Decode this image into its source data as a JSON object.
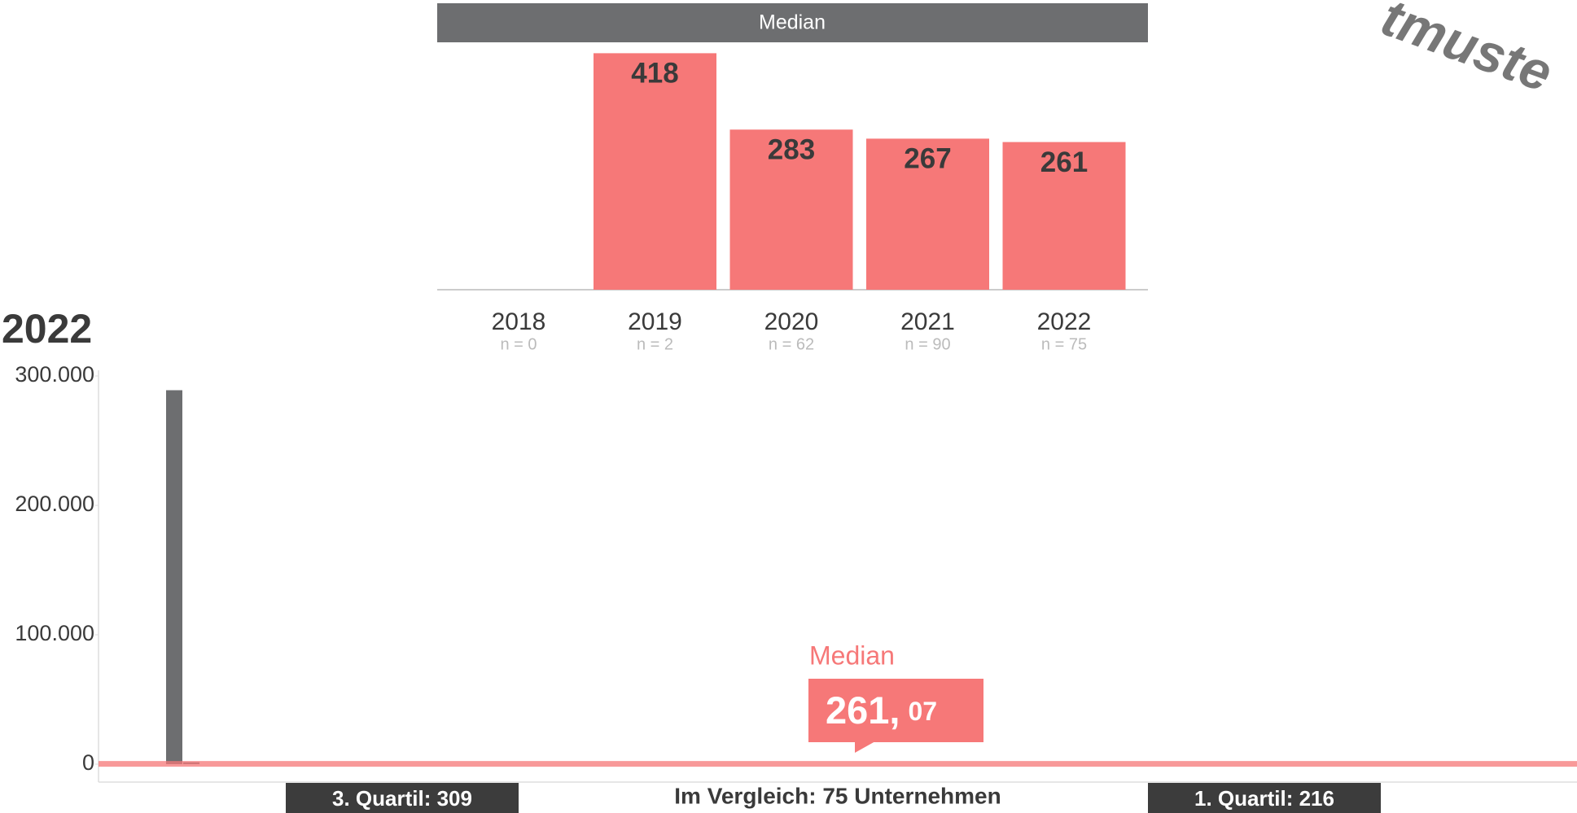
{
  "chart_data": [
    {
      "type": "bar",
      "title": "Median",
      "categories": [
        "2018",
        "2019",
        "2020",
        "2021",
        "2022"
      ],
      "category_notes": [
        "n = 0",
        "n = 2",
        "n = 62",
        "n = 90",
        "n = 75"
      ],
      "values": [
        null,
        418,
        283,
        267,
        261
      ],
      "color": "#f67878",
      "ylim": [
        0,
        420
      ]
    },
    {
      "type": "bar",
      "title": "2022",
      "values": [
        289000,
        1500
      ],
      "color": "#6d6e70",
      "ylim": [
        0,
        300000
      ],
      "yticks": [
        0,
        {
          "value": 100000,
          "label": "100.000"
        },
        {
          "value": 200000,
          "label": "200.000"
        },
        {
          "value": 300000,
          "label": "300.000"
        }
      ],
      "median_label": "Median",
      "median": 261.07,
      "median_value_labels": [
        "261,",
        "07"
      ],
      "median_color": "#f67878",
      "q3_label": "3. Quartil: 309",
      "q1_label": "1. Quartil: 216",
      "comparison_label": "Im Vergleich: 75 Unternehmen"
    }
  ],
  "watermark": "tmuste"
}
